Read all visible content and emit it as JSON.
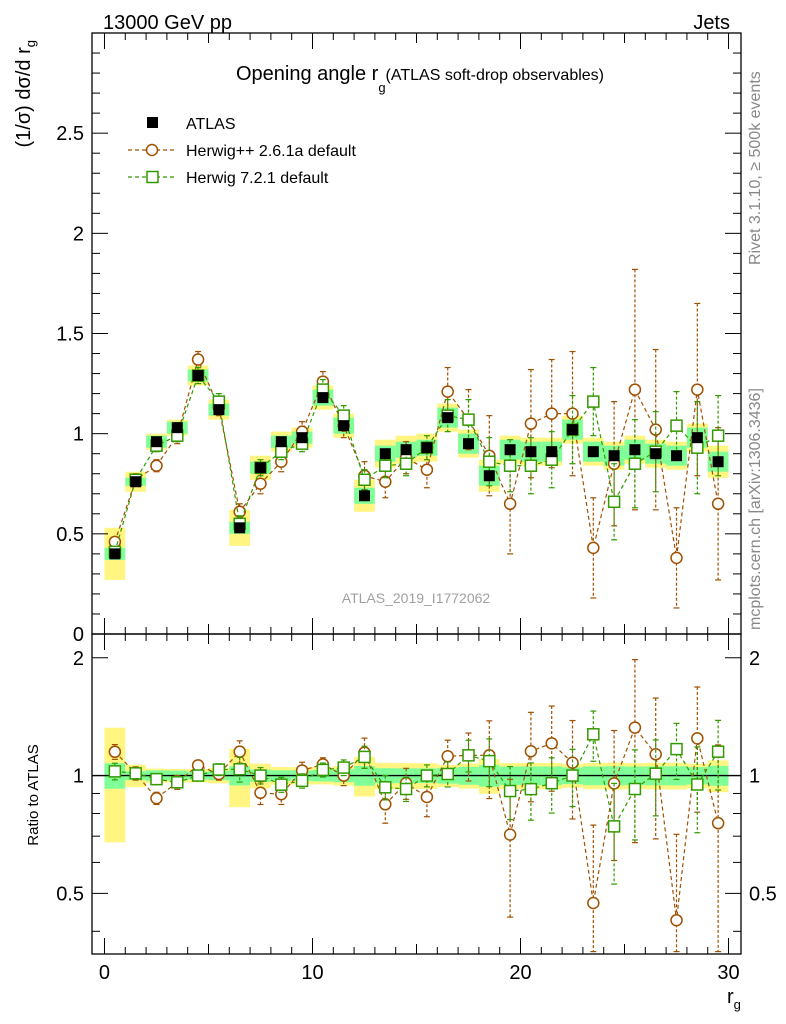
{
  "header": {
    "left": "13000 GeV pp",
    "right": "Jets"
  },
  "side_notes": {
    "rivet": "Rivet 3.1.10, ≥ 500k events",
    "mcplots": "mcplots.cern.ch [arXiv:1306.3436]"
  },
  "colors": {
    "atlas": "#000000",
    "herwigpp": "#a05000",
    "herwig7": "#339900",
    "band_outer": "#fff580",
    "band_inner": "#80ff99"
  },
  "chart_data": {
    "type": "scatter",
    "title": "Opening angle r",
    "title_subscript": "g",
    "title_suffix": "(ATLAS soft-drop observables)",
    "analysis_label": "ATLAS_2019_I1772062",
    "xlabel": "r",
    "xlabel_subscript": "g",
    "ylabel": "(1/σ) dσ/d r",
    "ylabel_subscript": "g",
    "ratio_ylabel": "Ratio to ATLAS",
    "xlim": [
      -0.6,
      30.6
    ],
    "ylim": [
      0,
      3
    ],
    "ratio_ylim": [
      0.35,
      2.3
    ],
    "x_ticks": [
      "0",
      "10",
      "20",
      "30"
    ],
    "y_ticks": [
      "0",
      "0.5",
      "1",
      "1.5",
      "2",
      "2.5"
    ],
    "ratio_y_ticks": [
      "0.5",
      "1",
      "2"
    ],
    "legend": [
      "ATLAS",
      "Herwig++ 2.6.1a default",
      "Herwig 7.2.1 default"
    ],
    "legend_position": "top-left",
    "x": [
      0.5,
      1.5,
      2.5,
      3.5,
      4.5,
      5.5,
      6.5,
      7.5,
      8.5,
      9.5,
      10.5,
      11.5,
      12.5,
      13.5,
      14.5,
      15.5,
      16.5,
      17.5,
      18.5,
      19.5,
      20.5,
      21.5,
      22.5,
      23.5,
      24.5,
      25.5,
      26.5,
      27.5,
      28.5,
      29.5
    ],
    "series": [
      {
        "name": "ATLAS",
        "marker": "filled-square",
        "values": [
          0.4,
          0.76,
          0.96,
          1.03,
          1.29,
          1.12,
          0.53,
          0.83,
          0.96,
          0.98,
          1.18,
          1.04,
          0.69,
          0.9,
          0.92,
          0.93,
          1.08,
          0.95,
          0.79,
          0.92,
          0.91,
          0.91,
          1.02,
          0.91,
          0.89,
          0.92,
          0.9,
          0.89,
          0.98,
          0.86
        ],
        "band_inner": [
          0.03,
          0.02,
          0.03,
          0.03,
          0.03,
          0.03,
          0.03,
          0.03,
          0.03,
          0.03,
          0.04,
          0.04,
          0.04,
          0.04,
          0.04,
          0.04,
          0.05,
          0.05,
          0.05,
          0.05,
          0.05,
          0.05,
          0.05,
          0.05,
          0.05,
          0.05,
          0.05,
          0.05,
          0.05,
          0.05
        ],
        "band_outer": [
          0.13,
          0.05,
          0.04,
          0.04,
          0.05,
          0.05,
          0.09,
          0.06,
          0.05,
          0.05,
          0.06,
          0.06,
          0.08,
          0.07,
          0.07,
          0.07,
          0.07,
          0.07,
          0.08,
          0.07,
          0.07,
          0.07,
          0.07,
          0.07,
          0.07,
          0.07,
          0.07,
          0.07,
          0.07,
          0.08
        ]
      },
      {
        "name": "Herwig++ 2.6.1a default",
        "marker": "open-circle",
        "style": "dashed",
        "values": [
          0.46,
          0.77,
          0.84,
          0.99,
          1.37,
          1.13,
          0.61,
          0.75,
          0.86,
          1.01,
          1.26,
          1.04,
          0.79,
          0.76,
          0.88,
          0.82,
          1.21,
          1.07,
          0.89,
          0.65,
          1.05,
          1.1,
          1.1,
          0.43,
          0.85,
          1.22,
          1.02,
          0.38,
          1.22,
          0.65
        ],
        "errors": [
          0.02,
          0.03,
          0.03,
          0.04,
          0.04,
          0.04,
          0.04,
          0.05,
          0.05,
          0.05,
          0.05,
          0.06,
          0.07,
          0.08,
          0.08,
          0.09,
          0.12,
          0.15,
          0.2,
          0.25,
          0.27,
          0.27,
          0.31,
          0.25,
          0.31,
          0.6,
          0.4,
          0.25,
          0.43,
          0.38
        ]
      },
      {
        "name": "Herwig 7.2.1 default",
        "marker": "open-square",
        "style": "dashed",
        "values": [
          0.41,
          0.77,
          0.94,
          0.99,
          1.29,
          1.16,
          0.55,
          0.83,
          0.91,
          0.95,
          1.22,
          1.09,
          0.77,
          0.84,
          0.85,
          0.93,
          1.09,
          1.07,
          0.86,
          0.84,
          0.84,
          0.87,
          1.02,
          1.16,
          0.66,
          0.85,
          0.91,
          1.04,
          0.93,
          0.99
        ],
        "errors": [
          0.02,
          0.02,
          0.03,
          0.03,
          0.04,
          0.04,
          0.04,
          0.04,
          0.04,
          0.04,
          0.05,
          0.05,
          0.05,
          0.06,
          0.06,
          0.06,
          0.08,
          0.1,
          0.12,
          0.13,
          0.14,
          0.14,
          0.17,
          0.17,
          0.19,
          0.22,
          0.2,
          0.17,
          0.23,
          0.2
        ]
      }
    ]
  }
}
